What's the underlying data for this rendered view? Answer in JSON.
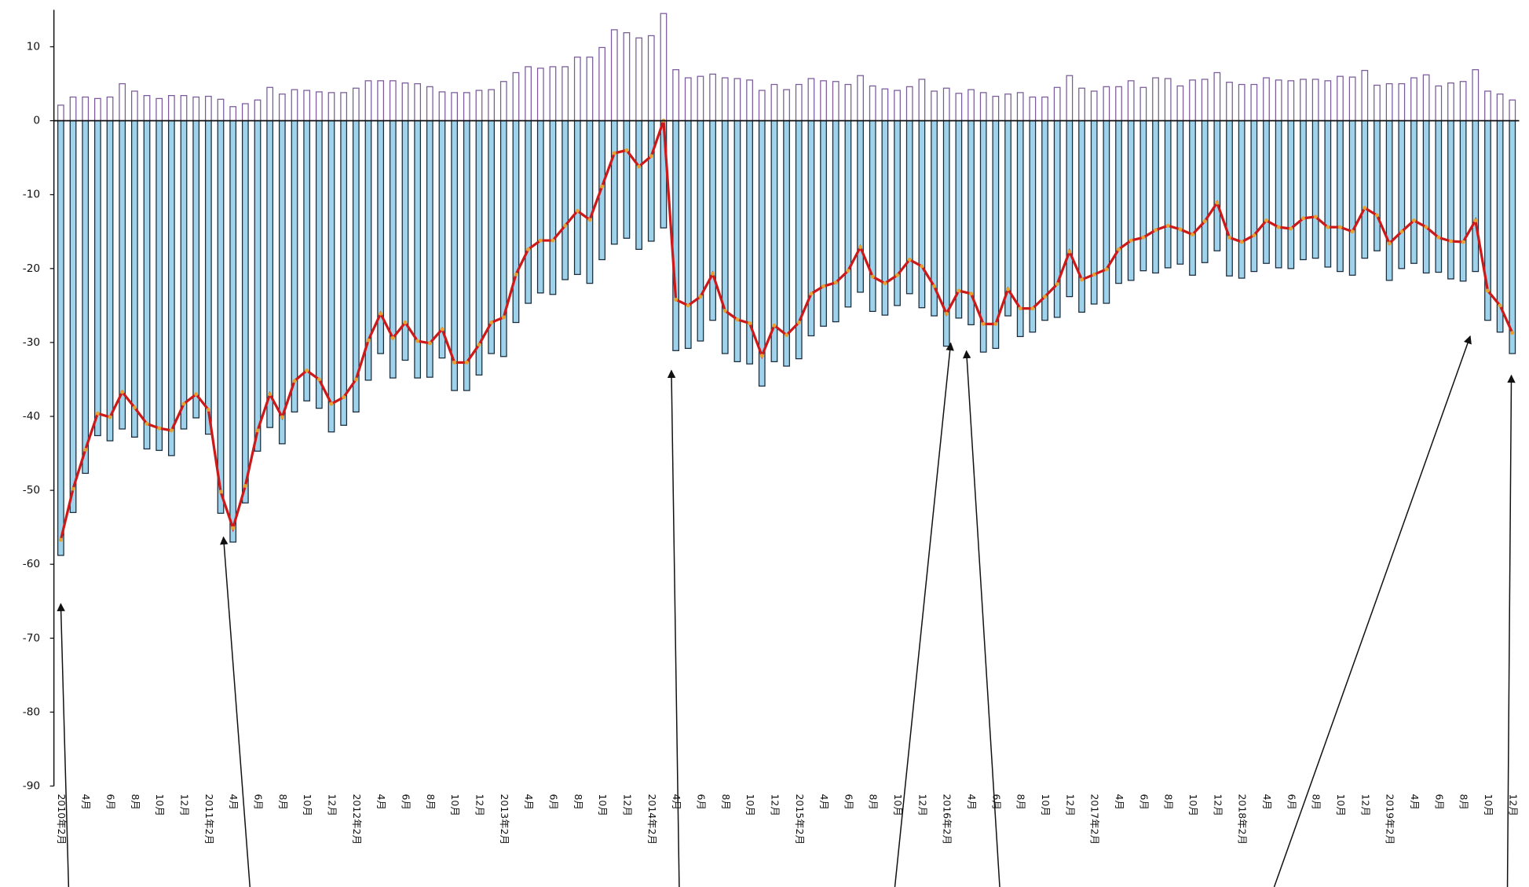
{
  "chart_data": {
    "type": "bar",
    "categories": [
      "2010年2月",
      null,
      "4月",
      null,
      "6月",
      null,
      "8月",
      null,
      "10月",
      null,
      "12月",
      null,
      "2011年2月",
      null,
      "4月",
      null,
      "6月",
      null,
      "8月",
      null,
      "10月",
      null,
      "12月",
      null,
      "2012年2月",
      null,
      "4月",
      null,
      "6月",
      null,
      "8月",
      null,
      "10月",
      null,
      "12月",
      null,
      "2013年2月",
      null,
      "4月",
      null,
      "6月",
      null,
      "8月",
      null,
      "10月",
      null,
      "12月",
      null,
      "2014年2月",
      null,
      "4月",
      null,
      "6月",
      null,
      "8月",
      null,
      "10月",
      null,
      "12月",
      null,
      "2015年2月",
      null,
      "4月",
      null,
      "6月",
      null,
      "8月",
      null,
      "10月",
      null,
      "12月",
      null,
      "2016年2月",
      null,
      "4月",
      null,
      "6月",
      null,
      "8月",
      null,
      "10月",
      null,
      "12月",
      null,
      "2017年2月",
      null,
      "4月",
      null,
      "6月",
      null,
      "8月",
      null,
      "10月",
      null,
      "12月",
      null,
      "2018年2月",
      null,
      "4月",
      null,
      "6月",
      null,
      "8月",
      null,
      "10月",
      null,
      "12月",
      null,
      "2019年2月",
      null,
      "4月",
      null,
      "6月",
      null,
      "8月",
      null,
      "10月",
      null,
      "12月"
    ],
    "series": [
      {
        "type": "bar",
        "color": "#7a5a9a",
        "fill": "#ffffff",
        "values": [
          2.1,
          3.2,
          3.2,
          3,
          3.2,
          5,
          4,
          3.4,
          3,
          3.4,
          3.4,
          3.2,
          3.3,
          2.9,
          1.9,
          2.3,
          2.8,
          4.5,
          3.6,
          4.2,
          4.1,
          3.9,
          3.8,
          3.8,
          4.4,
          5.4,
          5.4,
          5.4,
          5.1,
          5,
          4.6,
          3.9,
          3.8,
          3.8,
          4.1,
          4.2,
          5.3,
          6.5,
          7.3,
          7.1,
          7.3,
          7.3,
          8.6,
          8.6,
          9.9,
          12.3,
          11.9,
          11.2,
          11.5,
          14.5,
          6.9,
          5.8,
          6,
          6.3,
          5.8,
          5.7,
          5.5,
          4.1,
          4.9,
          4.2,
          4.9,
          5.7,
          5.4,
          5.3,
          4.9,
          6.1,
          4.7,
          4.3,
          4.1,
          4.6,
          5.6,
          4,
          4.4,
          3.7,
          4.2,
          3.8,
          3.3,
          3.6,
          3.8,
          3.2,
          3.2,
          4.5,
          6.1,
          4.4,
          4,
          4.6,
          4.6,
          5.4,
          4.5,
          5.8,
          5.7,
          4.7,
          5.5,
          5.6,
          6.5,
          5.2,
          4.9,
          4.9,
          5.8,
          5.5,
          5.4,
          5.6,
          5.6,
          5.4,
          6,
          5.9,
          6.8,
          4.8,
          5,
          5,
          5.8,
          6.2,
          4.7,
          5.1,
          5.3,
          6.9,
          4,
          3.6,
          2.8
        ]
      },
      {
        "type": "bar",
        "color": "#1a2a3a",
        "fill": "#9fd3ec",
        "values": [
          -58.8,
          -53,
          -47.7,
          -42.6,
          -43.3,
          -41.7,
          -42.8,
          -44.4,
          -44.6,
          -45.3,
          -41.7,
          -40.2,
          -42.4,
          -53.1,
          -57,
          -51.7,
          -44.7,
          -41.5,
          -43.7,
          -39.4,
          -37.9,
          -38.9,
          -42.1,
          -41.2,
          -39.4,
          -35.1,
          -31.5,
          -34.8,
          -32.4,
          -34.8,
          -34.7,
          -32.1,
          -36.5,
          -36.5,
          -34.4,
          -31.5,
          -31.9,
          -27.3,
          -24.7,
          -23.3,
          -23.5,
          -21.5,
          -20.8,
          -22,
          -18.8,
          -16.7,
          -15.9,
          -17.4,
          -16.3,
          -14.5,
          -31.1,
          -30.8,
          -29.8,
          -27,
          -31.5,
          -32.6,
          -32.9,
          -35.9,
          -32.6,
          -33.2,
          -32.2,
          -29.1,
          -27.8,
          -27.2,
          -25.2,
          -23.2,
          -25.8,
          -26.3,
          -25,
          -23.4,
          -25.3,
          -26.4,
          -30.5,
          -26.7,
          -27.6,
          -31.3,
          -30.8,
          -26.4,
          -29.2,
          -28.6,
          -27,
          -26.6,
          -23.8,
          -25.9,
          -24.8,
          -24.7,
          -22,
          -21.6,
          -20.3,
          -20.6,
          -19.9,
          -19.4,
          -20.9,
          -19.2,
          -17.6,
          -21,
          -21.3,
          -20.4,
          -19.3,
          -19.9,
          -20,
          -18.8,
          -18.6,
          -19.8,
          -20.4,
          -20.9,
          -18.6,
          -17.6,
          -21.6,
          -20,
          -19.3,
          -20.6,
          -20.5,
          -21.4,
          -21.7,
          -20.4,
          -27,
          -28.6,
          -31.5
        ]
      },
      {
        "type": "line",
        "color": "#cc1a1a",
        "marker_color": "#e8a030",
        "values": [
          -56.7,
          -49.8,
          -44.5,
          -39.6,
          -40.1,
          -36.7,
          -38.8,
          -41,
          -41.6,
          -41.9,
          -38.3,
          -37,
          -39.1,
          -50.2,
          -55.1,
          -49.4,
          -41.9,
          -37,
          -40.1,
          -35.2,
          -33.8,
          -35,
          -38.3,
          -37.4,
          -35,
          -29.7,
          -26.1,
          -29.4,
          -27.3,
          -29.8,
          -30.1,
          -28.2,
          -32.7,
          -32.7,
          -30.3,
          -27.3,
          -26.6,
          -20.8,
          -17.4,
          -16.2,
          -16.2,
          -14.2,
          -12.2,
          -13.4,
          -8.9,
          -4.4,
          -4,
          -6.2,
          -4.8,
          0,
          -24.2,
          -25,
          -23.8,
          -20.7,
          -25.7,
          -26.9,
          -27.4,
          -31.8,
          -27.7,
          -29,
          -27.3,
          -23.4,
          -22.4,
          -21.9,
          -20.3,
          -17.1,
          -21.1,
          -22,
          -20.9,
          -18.8,
          -19.7,
          -22.4,
          -26.1,
          -23,
          -23.4,
          -27.5,
          -27.5,
          -22.8,
          -25.4,
          -25.4,
          -23.8,
          -22.1,
          -17.7,
          -21.5,
          -20.8,
          -20.1,
          -17.4,
          -16.2,
          -15.8,
          -14.8,
          -14.2,
          -14.7,
          -15.4,
          -13.6,
          -11.1,
          -15.8,
          -16.4,
          -15.5,
          -13.5,
          -14.4,
          -14.6,
          -13.2,
          -13,
          -14.4,
          -14.4,
          -15,
          -11.8,
          -12.8,
          -16.6,
          -15,
          -13.5,
          -14.4,
          -15.8,
          -16.3,
          -16.4,
          -13.5,
          -23,
          -25,
          -28.7
        ]
      }
    ],
    "ylim": [
      -90,
      15
    ],
    "yticks": [
      10,
      0,
      -10,
      -20,
      -30,
      -40,
      -50,
      -60,
      -70,
      -80,
      -90
    ],
    "grid": false
  }
}
